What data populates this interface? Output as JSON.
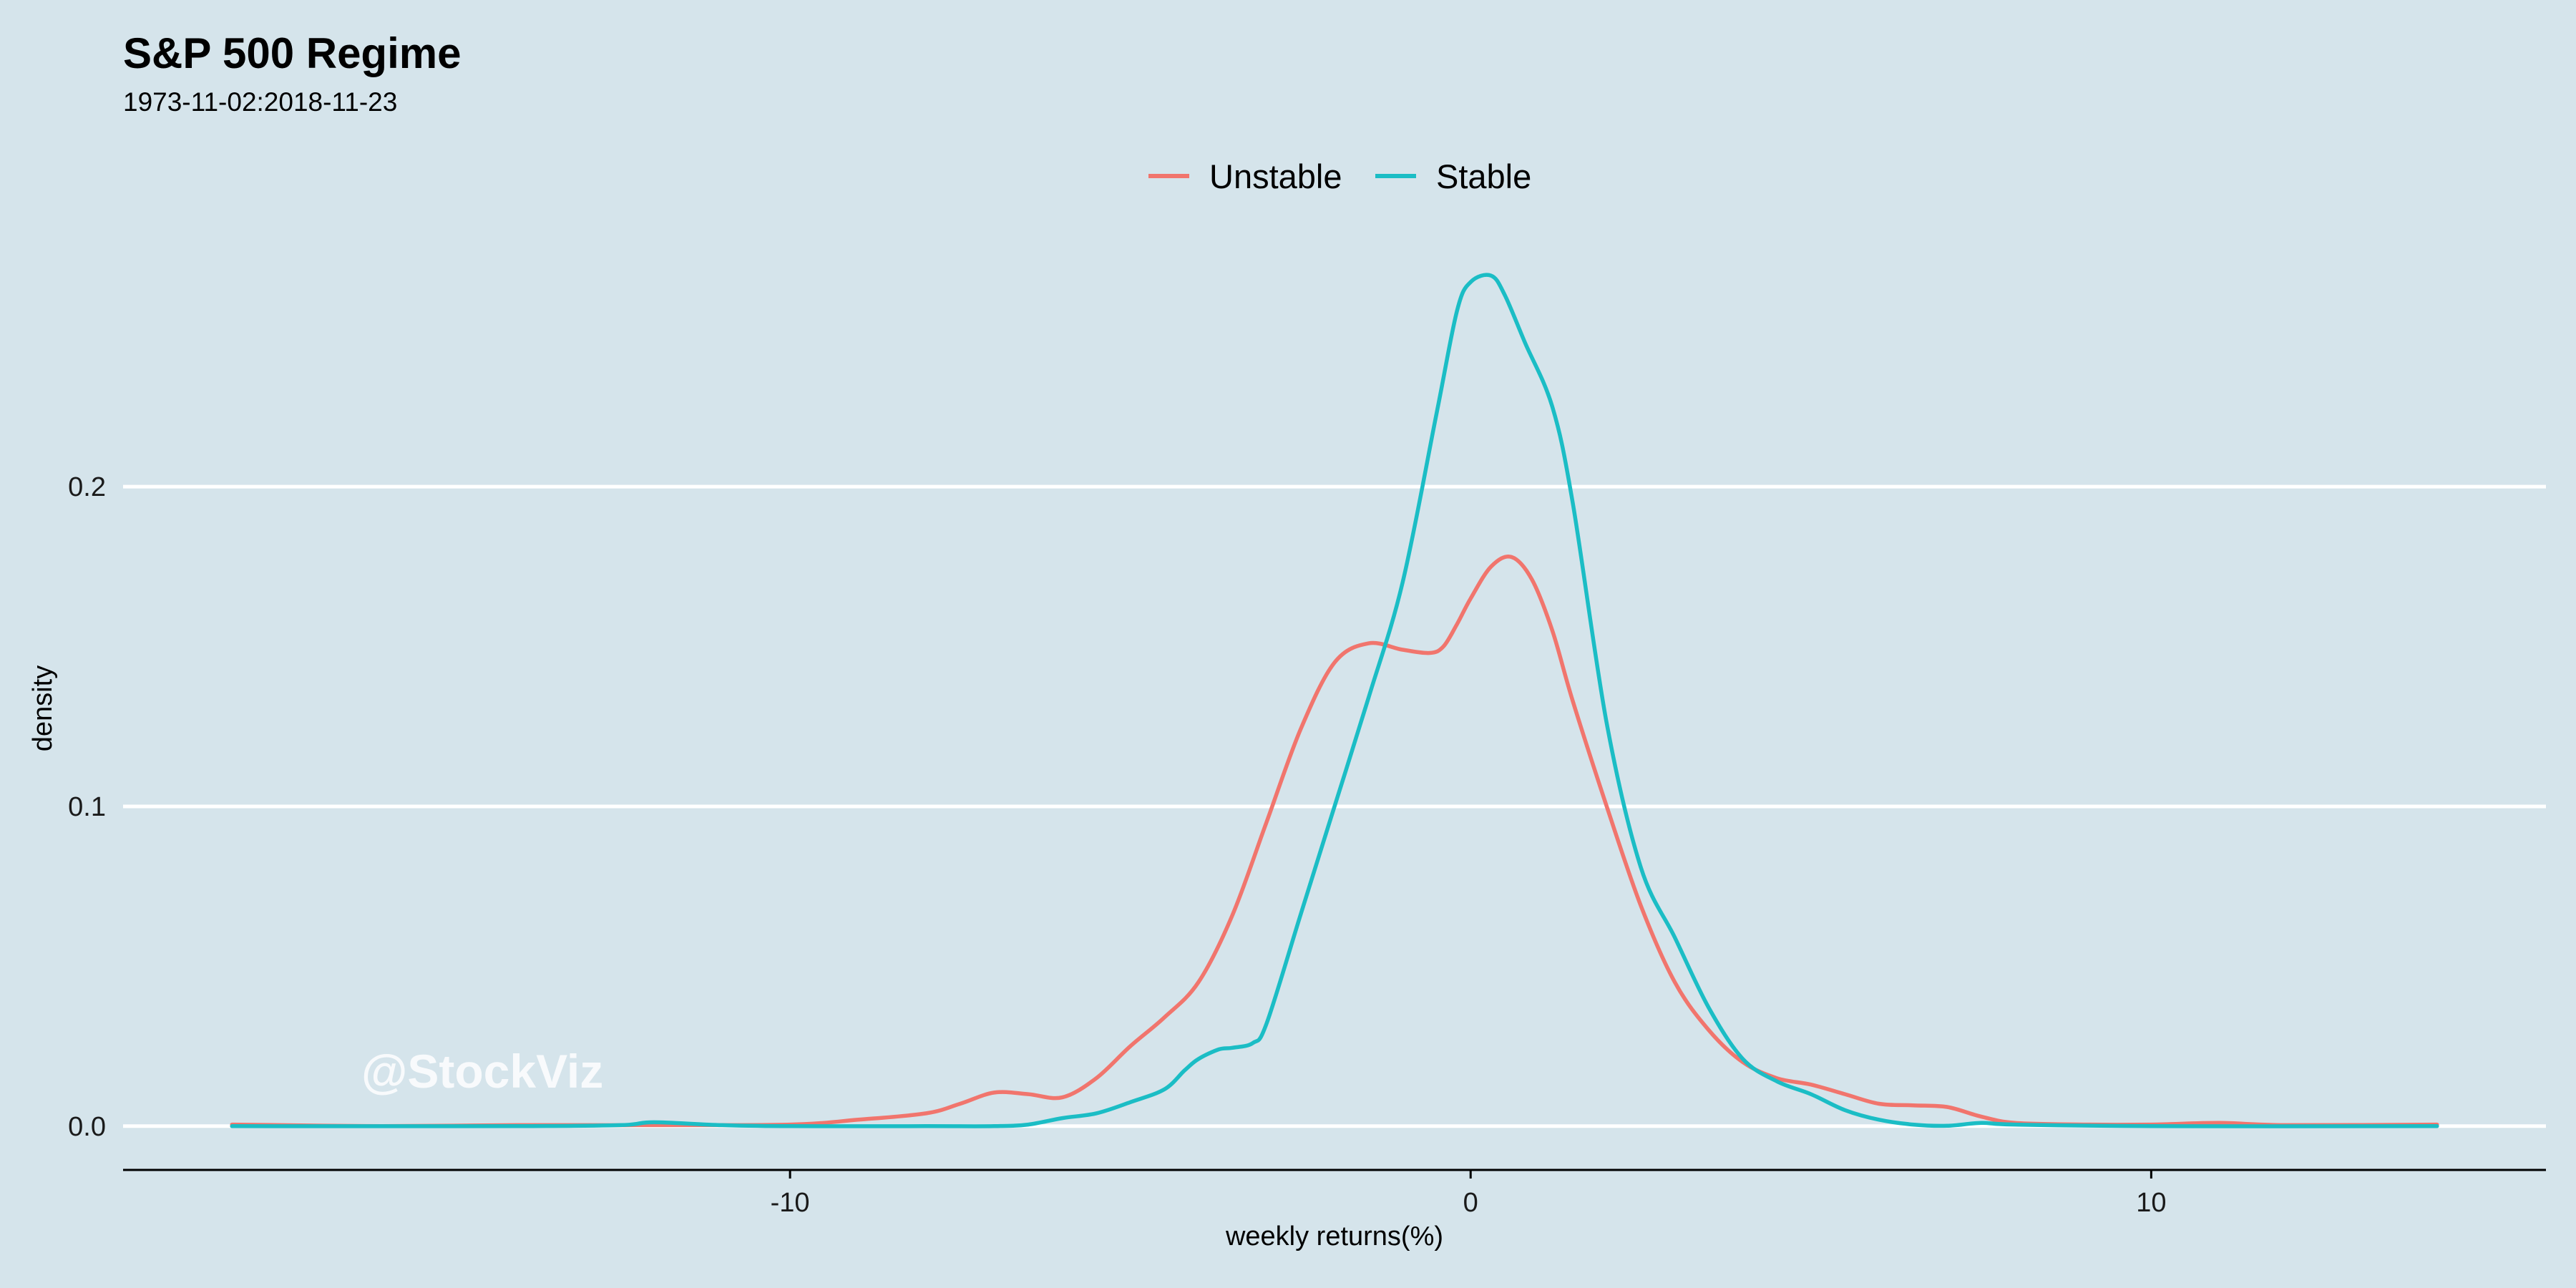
{
  "chart_data": {
    "type": "line",
    "title": "S&P 500 Regime",
    "subtitle": "1973-11-02:2018-11-23",
    "xlabel": "weekly returns(%)",
    "ylabel": "density",
    "xlim": [
      -19.8,
      15.8
    ],
    "ylim": [
      -0.0137,
      0.2985
    ],
    "x_ticks": [
      -10,
      0,
      10
    ],
    "x_tick_labels": [
      "-10",
      "0",
      "10"
    ],
    "y_ticks": [
      0.0,
      0.1,
      0.2
    ],
    "y_tick_labels": [
      "0.0",
      "0.1",
      "0.2"
    ],
    "grid": "horizontal major",
    "legend_position": "top",
    "watermark": "@StockViz",
    "colors": {
      "background": "#d5e4eb",
      "grid": "#ffffff",
      "axis_line": "#000000"
    },
    "series": [
      {
        "name": "Unstable",
        "color": "#f1756d",
        "x": [
          -18.2,
          -16,
          -14,
          -12,
          -10,
          -9,
          -8,
          -7.5,
          -7,
          -6.5,
          -6,
          -5.5,
          -5,
          -4.5,
          -4,
          -3.5,
          -3,
          -2.5,
          -2,
          -1.5,
          -1,
          -0.6,
          -0.4,
          -0.2,
          0,
          0.3,
          0.6,
          0.9,
          1.2,
          1.5,
          2,
          2.5,
          3,
          3.5,
          4,
          4.5,
          5,
          5.5,
          6,
          6.5,
          7,
          7.5,
          8,
          9,
          10,
          11,
          12,
          14.2
        ],
        "values": [
          0.0005,
          0.0,
          0.0003,
          0.0003,
          0.0005,
          0.002,
          0.004,
          0.007,
          0.0105,
          0.01,
          0.009,
          0.015,
          0.025,
          0.034,
          0.045,
          0.066,
          0.095,
          0.124,
          0.145,
          0.151,
          0.149,
          0.148,
          0.15,
          0.157,
          0.165,
          0.175,
          0.178,
          0.171,
          0.155,
          0.133,
          0.1,
          0.069,
          0.045,
          0.03,
          0.02,
          0.015,
          0.013,
          0.01,
          0.007,
          0.0065,
          0.006,
          0.003,
          0.001,
          0.0005,
          0.0005,
          0.001,
          0.0003,
          0.0005
        ]
      },
      {
        "name": "Stable",
        "color": "#1bbdc5",
        "x": [
          -18.2,
          -14,
          -12.5,
          -12,
          -11,
          -10,
          -8,
          -7,
          -6.5,
          -6,
          -5.5,
          -5,
          -4.5,
          -4.2,
          -4,
          -3.7,
          -3.5,
          -3.2,
          -3,
          -2.5,
          -2,
          -1.5,
          -1,
          -0.5,
          -0.2,
          0,
          0.3,
          0.5,
          0.8,
          1.2,
          1.5,
          2,
          2.5,
          3,
          3.5,
          4,
          4.5,
          5,
          5.5,
          6,
          6.5,
          7,
          7.5,
          8,
          10,
          14.2
        ],
        "values": [
          0.0,
          0.0,
          0.0003,
          0.0012,
          0.0003,
          0.0,
          0.0,
          0.0,
          0.0005,
          0.0025,
          0.004,
          0.0075,
          0.0115,
          0.0175,
          0.021,
          0.024,
          0.0245,
          0.026,
          0.032,
          0.066,
          0.1,
          0.134,
          0.17,
          0.223,
          0.255,
          0.264,
          0.266,
          0.26,
          0.245,
          0.225,
          0.195,
          0.126,
          0.081,
          0.059,
          0.037,
          0.021,
          0.014,
          0.01,
          0.005,
          0.002,
          0.0005,
          0.0001,
          0.001,
          0.0005,
          0.0,
          0.0
        ]
      }
    ]
  }
}
